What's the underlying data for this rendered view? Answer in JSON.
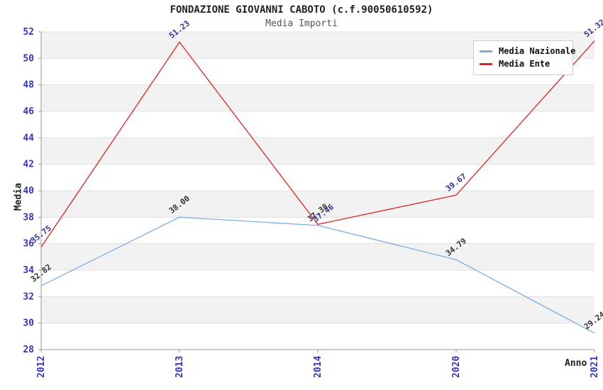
{
  "title": "FONDAZIONE GIOVANNI CABOTO (c.f.90050610592)",
  "subtitle": "Media Importi",
  "chart_data": {
    "type": "line",
    "title": "FONDAZIONE GIOVANNI CABOTO (c.f.90050610592)",
    "subtitle": "Media Importi",
    "categories": [
      "2012",
      "2013",
      "2014",
      "2020",
      "2021"
    ],
    "series": [
      {
        "name": "Media Nazionale",
        "color": "#7aaede",
        "label_color": "#333333",
        "values": [
          32.82,
          38.0,
          37.38,
          34.79,
          29.24
        ],
        "labels": [
          "32.82",
          "38.00",
          "37.38",
          "34.79",
          "29.24"
        ]
      },
      {
        "name": "Media Ente",
        "color": "#e02222",
        "label_color": "#333399",
        "values": [
          35.75,
          51.23,
          37.46,
          39.67,
          51.32
        ],
        "labels": [
          "35.75",
          "51.23",
          "37.46",
          "39.67",
          "51.32"
        ]
      }
    ],
    "xlabel": "Anno",
    "ylabel": "Media",
    "ylim": [
      28,
      52
    ],
    "ytick_step": 2,
    "grid": true,
    "legend_position": "top-right",
    "band_colors": [
      "#f2f2f2",
      "#ffffff"
    ],
    "tick_label_color": "#3333cc",
    "gridline_color": "#e0e0e0",
    "spine_color": "#999999"
  }
}
